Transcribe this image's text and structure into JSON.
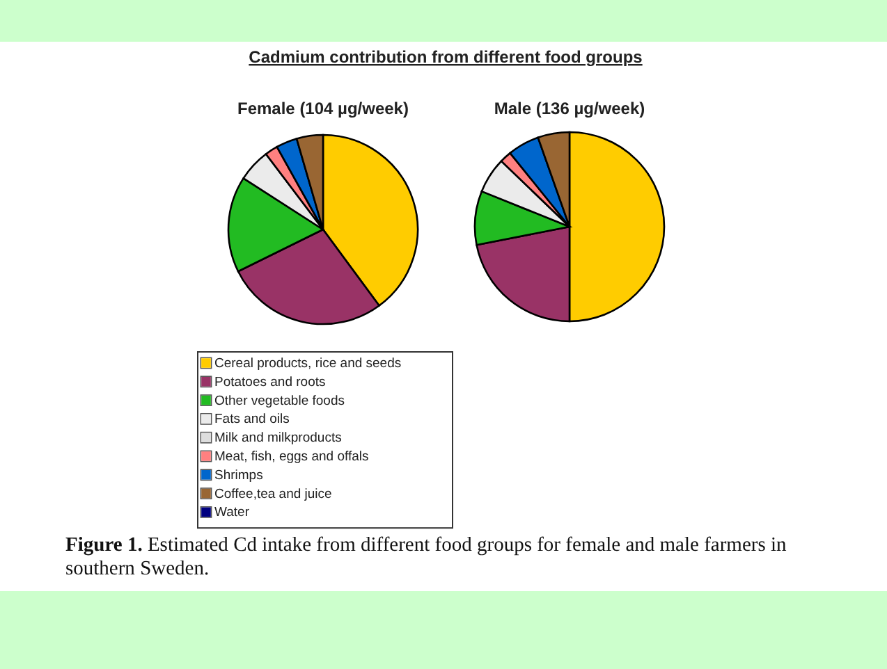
{
  "chart_data": [
    {
      "type": "pie",
      "title": "Cadmium contribution from different food groups",
      "subtitle": "Female (104 µg/week)",
      "categories": [
        "Cereal products, rice and seeds",
        "Potatoes and roots",
        "Other vegetable foods",
        "Fats and oils",
        "Milk and milkproducts",
        "Meat, fish, eggs and offals",
        "Shrimps",
        "Coffee,tea and juice",
        "Water"
      ],
      "values": [
        39.9,
        27.8,
        16.4,
        5.6,
        null,
        2.2,
        3.6,
        4.5,
        0
      ],
      "colors": [
        "#ffcc00",
        "#993366",
        "#22bb22",
        "#ebebeb",
        "#dddddd",
        "#ff8080",
        "#0066cc",
        "#996633",
        "#000080"
      ],
      "legend": "bottom",
      "annotations": [
        "Figure 1. Estimated Cd intake from different food groups for female and male farmers in southern Sweden."
      ]
    },
    {
      "type": "pie",
      "title": "Male (136 µg/week)",
      "categories": [
        null,
        null,
        null,
        null,
        null,
        null,
        null,
        null,
        null
      ],
      "values": [
        50,
        21.9,
        9.2,
        6.1,
        null,
        2.0,
        5.4,
        5.4,
        0
      ],
      "colors": [
        "#ffcc00",
        "#993366",
        "#22bb22",
        "#ebebeb",
        "#dddddd",
        "#ff8080",
        "#0066cc",
        "#996633",
        "#000080"
      ]
    }
  ]
}
